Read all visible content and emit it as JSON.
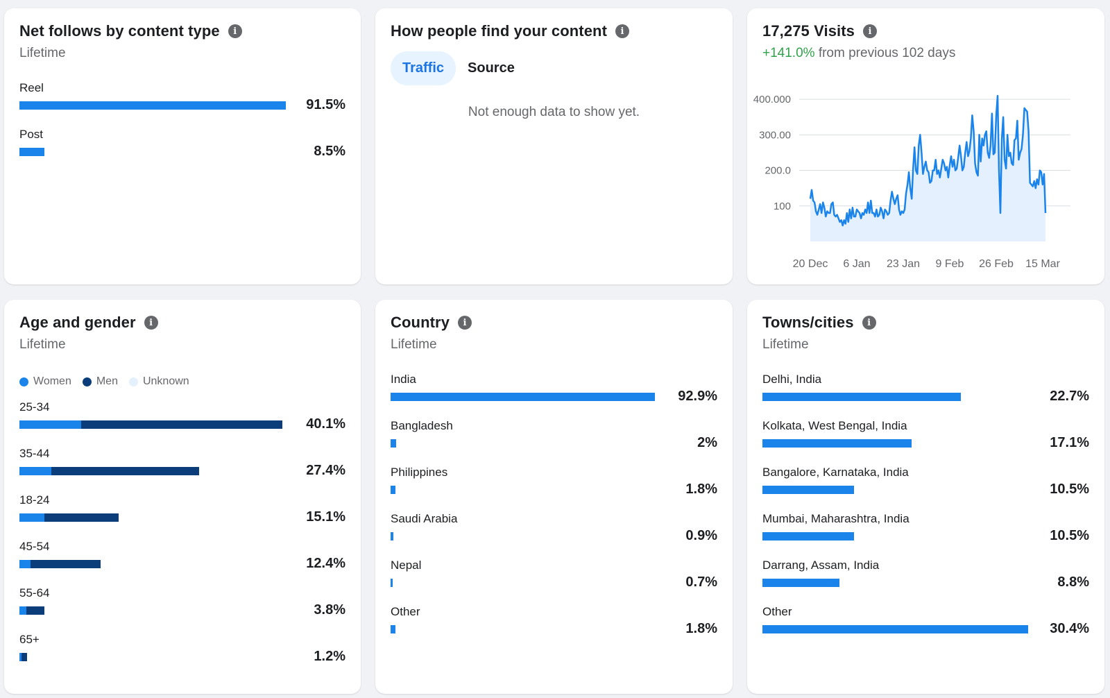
{
  "colors": {
    "women": "#1b84eb",
    "men": "#0a3d7a",
    "unknown": "#e4f0fb",
    "positive": "#31a24c",
    "line": "#1b84eb",
    "area": "#e4f0fd"
  },
  "net_follows": {
    "title": "Net follows by content type",
    "subtitle": "Lifetime",
    "items": [
      {
        "label": "Reel",
        "value": "91.5%",
        "pct": 91.5
      },
      {
        "label": "Post",
        "value": "8.5%",
        "pct": 8.5
      }
    ]
  },
  "find_content": {
    "title": "How people find your content",
    "tabs": [
      {
        "label": "Traffic",
        "active": true
      },
      {
        "label": "Source",
        "active": false
      }
    ],
    "empty_message": "Not enough data to show yet."
  },
  "visits": {
    "title": "17,275 Visits",
    "change": "+141.0%",
    "change_suffix": " from previous 102 days"
  },
  "chart_data": {
    "type": "area",
    "y_ticks": [
      "400.000",
      "300.00",
      "200.0",
      "100"
    ],
    "y_tick_values": [
      400,
      300,
      200,
      100
    ],
    "ylim": [
      0,
      410
    ],
    "x_ticks": [
      "20 Dec",
      "6 Jan",
      "23 Jan",
      "9 Feb",
      "26 Feb",
      "15 Mar"
    ],
    "grid": true,
    "series": [
      {
        "values": [
          120,
          145,
          115,
          110,
          85,
          75,
          90,
          105,
          80,
          110,
          95,
          70,
          85,
          80,
          80,
          105,
          110,
          75,
          70,
          75,
          65,
          55,
          60,
          45,
          60,
          50,
          80,
          55,
          90,
          65,
          95,
          70,
          70,
          90,
          85,
          80,
          65,
          80,
          75,
          90,
          80,
          110,
          80,
          115,
          80,
          80,
          70,
          90,
          70,
          75,
          95,
          85,
          65,
          90,
          85,
          75,
          80,
          115,
          140,
          120,
          105,
          120,
          130,
          90,
          75,
          85,
          80,
          90,
          135,
          160,
          195,
          150,
          120,
          205,
          265,
          200,
          190,
          270,
          300,
          250,
          190,
          210,
          225,
          200,
          195,
          165,
          170,
          200,
          200,
          230,
          190,
          200,
          180,
          205,
          230,
          220,
          200,
          210,
          180,
          215,
          240,
          210,
          230,
          200,
          205,
          235,
          270,
          240,
          200,
          210,
          250,
          280,
          240,
          255,
          290,
          355,
          310,
          220,
          195,
          185,
          300,
          225,
          290,
          270,
          300,
          310,
          250,
          235,
          270,
          360,
          245,
          250,
          355,
          410,
          200,
          80,
          290,
          350,
          230,
          205,
          300,
          240,
          250,
          220,
          215,
          285,
          290,
          340,
          230,
          250,
          260,
          300,
          375,
          370,
          365,
          310,
          165,
          160,
          155,
          170,
          150,
          175,
          160,
          200,
          195,
          160,
          190,
          80
        ],
        "x_start": "2024-12-20",
        "x_end": "2025-03-15"
      }
    ]
  },
  "age_gender": {
    "title": "Age and gender",
    "subtitle": "Lifetime",
    "legend": [
      {
        "label": "Women",
        "color": "#1b84eb"
      },
      {
        "label": "Men",
        "color": "#0a3d7a"
      },
      {
        "label": "Unknown",
        "color": "#e4f0fb"
      }
    ],
    "items": [
      {
        "label": "25-34",
        "value": "40.1%",
        "women": 9.4,
        "men": 30.7
      },
      {
        "label": "35-44",
        "value": "27.4%",
        "women": 4.9,
        "men": 22.5
      },
      {
        "label": "18-24",
        "value": "15.1%",
        "women": 3.8,
        "men": 11.3
      },
      {
        "label": "45-54",
        "value": "12.4%",
        "women": 1.7,
        "men": 10.7
      },
      {
        "label": "55-64",
        "value": "3.8%",
        "women": 1.1,
        "men": 2.7
      },
      {
        "label": "65+",
        "value": "1.2%",
        "women": 0.3,
        "men": 0.9
      }
    ],
    "scale_max": 40.1
  },
  "country": {
    "title": "Country",
    "subtitle": "Lifetime",
    "items": [
      {
        "label": "India",
        "value": "92.9%",
        "pct": 92.9
      },
      {
        "label": "Bangladesh",
        "value": "2%",
        "pct": 2
      },
      {
        "label": "Philippines",
        "value": "1.8%",
        "pct": 1.8
      },
      {
        "label": "Saudi Arabia",
        "value": "0.9%",
        "pct": 0.9
      },
      {
        "label": "Nepal",
        "value": "0.7%",
        "pct": 0.7
      },
      {
        "label": "Other",
        "value": "1.8%",
        "pct": 1.8
      }
    ],
    "scale_max": 92.9
  },
  "towns": {
    "title": "Towns/cities",
    "subtitle": "Lifetime",
    "items": [
      {
        "label": "Delhi, India",
        "value": "22.7%",
        "pct": 22.7
      },
      {
        "label": "Kolkata, West Bengal, India",
        "value": "17.1%",
        "pct": 17.1
      },
      {
        "label": "Bangalore, Karnataka, India",
        "value": "10.5%",
        "pct": 10.5
      },
      {
        "label": "Mumbai, Maharashtra, India",
        "value": "10.5%",
        "pct": 10.5
      },
      {
        "label": "Darrang, Assam, India",
        "value": "8.8%",
        "pct": 8.8
      },
      {
        "label": "Other",
        "value": "30.4%",
        "pct": 30.4
      }
    ],
    "scale_max": 30.4
  }
}
